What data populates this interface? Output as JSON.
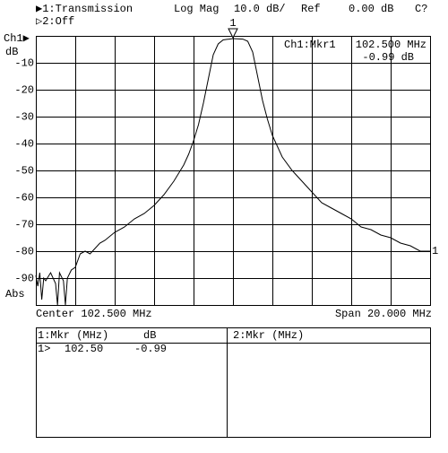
{
  "header": {
    "trace1": "▶1:Transmission",
    "format": "Log Mag",
    "scale": "10.0 dB/",
    "ref": "Ref",
    "ref_value": "0.00 dB",
    "status": "C?",
    "trace2": "▷2:Off"
  },
  "channel": {
    "name": "Ch1▶",
    "unit": "dB",
    "mode": "Abs",
    "edge_label": "1"
  },
  "marker_readout": {
    "title": "Ch1:Mkr1",
    "freq": "102.500 MHz",
    "level": "-0.99 dB"
  },
  "footer": {
    "center": "Center 102.500 MHz",
    "span": "Span 20.000 MHz"
  },
  "table": {
    "headers": [
      "1:Mkr (MHz)",
      "dB",
      "2:Mkr (MHz)"
    ],
    "rows": [
      [
        "1>",
        "102.50",
        "-0.99"
      ]
    ]
  },
  "chart_data": {
    "type": "line",
    "x": [
      92.5,
      92.6,
      92.7,
      92.8,
      92.9,
      93.0,
      93.25,
      93.5,
      93.6,
      93.7,
      93.9,
      94.0,
      94.1,
      94.3,
      94.5,
      94.75,
      95.0,
      95.25,
      95.5,
      95.75,
      96.0,
      96.5,
      97.0,
      97.5,
      98.0,
      98.5,
      99.0,
      99.5,
      100.0,
      100.25,
      100.5,
      100.75,
      101.0,
      101.25,
      101.5,
      101.75,
      102.0,
      102.5,
      103.0,
      103.25,
      103.5,
      103.75,
      104.0,
      104.25,
      104.5,
      105.0,
      105.5,
      106.0,
      106.5,
      107.0,
      107.5,
      108.0,
      108.5,
      109.0,
      109.5,
      110.0,
      110.5,
      111.0,
      111.5,
      112.0,
      112.5
    ],
    "series": [
      {
        "name": "Transmission",
        "color": "#000000",
        "values": [
          -89,
          -93,
          -88,
          -98,
          -90,
          -91,
          -88,
          -92,
          -100,
          -88,
          -91,
          -100,
          -90,
          -87,
          -86,
          -81,
          -80,
          -81,
          -79,
          -77,
          -76,
          -73,
          -71,
          -68,
          -66,
          -63,
          -59,
          -54,
          -48,
          -44,
          -39,
          -33,
          -25,
          -16,
          -7,
          -3,
          -1.5,
          -1.0,
          -1.2,
          -2,
          -6,
          -15,
          -24,
          -31,
          -37,
          -45,
          -50,
          -54,
          -58,
          -62,
          -64,
          -66,
          -68,
          -71,
          -72,
          -74,
          -75,
          -77,
          -78,
          -80,
          -80
        ]
      }
    ],
    "marker": {
      "label": "1",
      "x": 102.5
    },
    "xlim": [
      92.5,
      112.5
    ],
    "ylim": [
      -100,
      0
    ],
    "yticks": [
      -10,
      -20,
      -30,
      -40,
      -50,
      -60,
      -70,
      -80,
      -90
    ],
    "grid": true
  }
}
